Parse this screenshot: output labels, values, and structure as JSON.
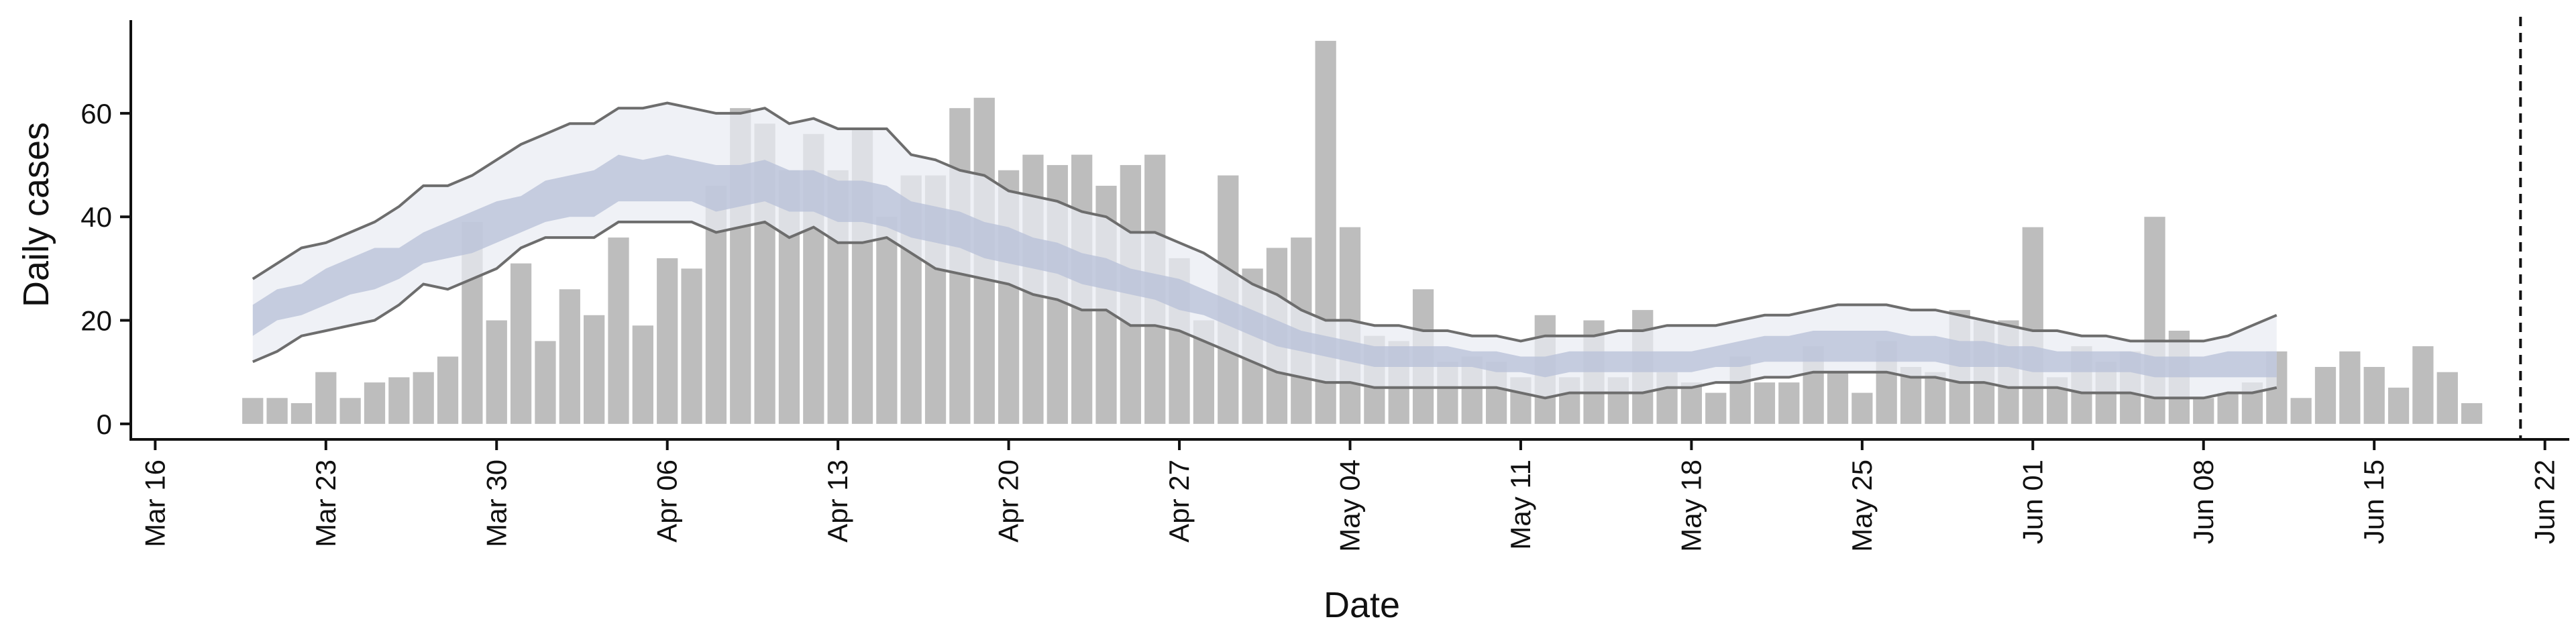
{
  "chart_data": {
    "type": "bar",
    "title": "",
    "xlabel": "Date",
    "ylabel": "Daily cases",
    "xlim": [
      "2020-03-15",
      "2020-06-23"
    ],
    "ylim": [
      -3,
      78
    ],
    "x_ticks": [
      "Mar 16",
      "Mar 23",
      "Mar 30",
      "Apr 06",
      "Apr 13",
      "Apr 20",
      "Apr 27",
      "May 04",
      "May 11",
      "May 18",
      "May 25",
      "Jun 01",
      "Jun 08",
      "Jun 15",
      "Jun 22"
    ],
    "y_ticks": [
      0,
      20,
      40,
      60
    ],
    "grid": false,
    "legend": "none",
    "start_date": "2020-03-20",
    "daily_cases": [
      5,
      5,
      4,
      10,
      5,
      8,
      9,
      10,
      13,
      39,
      20,
      31,
      16,
      26,
      21,
      36,
      19,
      32,
      30,
      46,
      61,
      58,
      49,
      56,
      49,
      57,
      40,
      48,
      48,
      61,
      63,
      49,
      52,
      50,
      52,
      46,
      50,
      52,
      32,
      20,
      48,
      30,
      34,
      36,
      74,
      38,
      17,
      16,
      26,
      12,
      13,
      12,
      9,
      21,
      9,
      20,
      9,
      22,
      10,
      8,
      6,
      13,
      8,
      8,
      15,
      10,
      6,
      16,
      11,
      10,
      22,
      20,
      20,
      38,
      9,
      15,
      12,
      14,
      40,
      18,
      5,
      6,
      8,
      14,
      5,
      11,
      14,
      11,
      7,
      15,
      10,
      4
    ],
    "forecast_start": "2020-03-20",
    "band_outer_upper": [
      28,
      31,
      34,
      35,
      37,
      39,
      42,
      46,
      46,
      48,
      51,
      54,
      56,
      58,
      58,
      61,
      61,
      62,
      61,
      60,
      60,
      61,
      58,
      59,
      57,
      57,
      57,
      52,
      51,
      49,
      48,
      45,
      44,
      43,
      41,
      40,
      37,
      37,
      35,
      33,
      30,
      27,
      25,
      22,
      20,
      20,
      19,
      19,
      18,
      18,
      17,
      17,
      16,
      17,
      17,
      17,
      18,
      18,
      19,
      19,
      19,
      20,
      21,
      21,
      22,
      23,
      23,
      23,
      22,
      22,
      21,
      20,
      19,
      18,
      18,
      17,
      17,
      16,
      16,
      16,
      16,
      17,
      19,
      21
    ],
    "band_outer_lower": [
      12,
      14,
      17,
      18,
      19,
      20,
      23,
      27,
      26,
      28,
      30,
      34,
      36,
      36,
      36,
      39,
      39,
      39,
      39,
      37,
      38,
      39,
      36,
      38,
      35,
      35,
      36,
      33,
      30,
      29,
      28,
      27,
      25,
      24,
      22,
      22,
      19,
      19,
      18,
      16,
      14,
      12,
      10,
      9,
      8,
      8,
      7,
      7,
      7,
      7,
      7,
      7,
      6,
      5,
      6,
      6,
      6,
      6,
      7,
      7,
      8,
      8,
      9,
      9,
      10,
      10,
      10,
      10,
      9,
      9,
      8,
      8,
      7,
      7,
      7,
      6,
      6,
      6,
      5,
      5,
      5,
      6,
      6,
      7
    ],
    "band_inner_upper": [
      23,
      26,
      27,
      30,
      32,
      34,
      34,
      37,
      39,
      41,
      43,
      44,
      47,
      48,
      49,
      52,
      51,
      52,
      51,
      50,
      50,
      51,
      49,
      49,
      47,
      47,
      46,
      43,
      42,
      41,
      39,
      38,
      36,
      35,
      33,
      32,
      30,
      29,
      28,
      26,
      24,
      22,
      20,
      18,
      17,
      16,
      15,
      15,
      15,
      15,
      14,
      14,
      13,
      13,
      14,
      14,
      14,
      14,
      14,
      14,
      15,
      16,
      17,
      17,
      18,
      18,
      18,
      18,
      17,
      17,
      16,
      16,
      15,
      15,
      14,
      14,
      14,
      14,
      13,
      13,
      13,
      14,
      14,
      14
    ],
    "band_inner_lower": [
      17,
      20,
      21,
      23,
      25,
      26,
      28,
      31,
      32,
      33,
      35,
      37,
      39,
      40,
      40,
      43,
      43,
      43,
      43,
      41,
      42,
      43,
      41,
      41,
      39,
      39,
      38,
      36,
      35,
      34,
      32,
      31,
      30,
      29,
      27,
      26,
      25,
      24,
      22,
      21,
      19,
      17,
      15,
      14,
      13,
      12,
      11,
      11,
      11,
      11,
      11,
      10,
      10,
      9,
      10,
      10,
      10,
      10,
      10,
      10,
      11,
      11,
      12,
      12,
      12,
      12,
      12,
      12,
      12,
      12,
      11,
      11,
      11,
      10,
      10,
      10,
      10,
      10,
      9,
      9,
      9,
      9,
      9,
      9
    ],
    "colors": {
      "bars": "#bdbdbd",
      "band_outer": "#e9ebf2",
      "band_inner": "#b9c2d9",
      "band_lines": "#6d6d6d",
      "axes": "#111111"
    },
    "vertical_line": {
      "date": "2020-06-21",
      "style": "dashed"
    }
  }
}
